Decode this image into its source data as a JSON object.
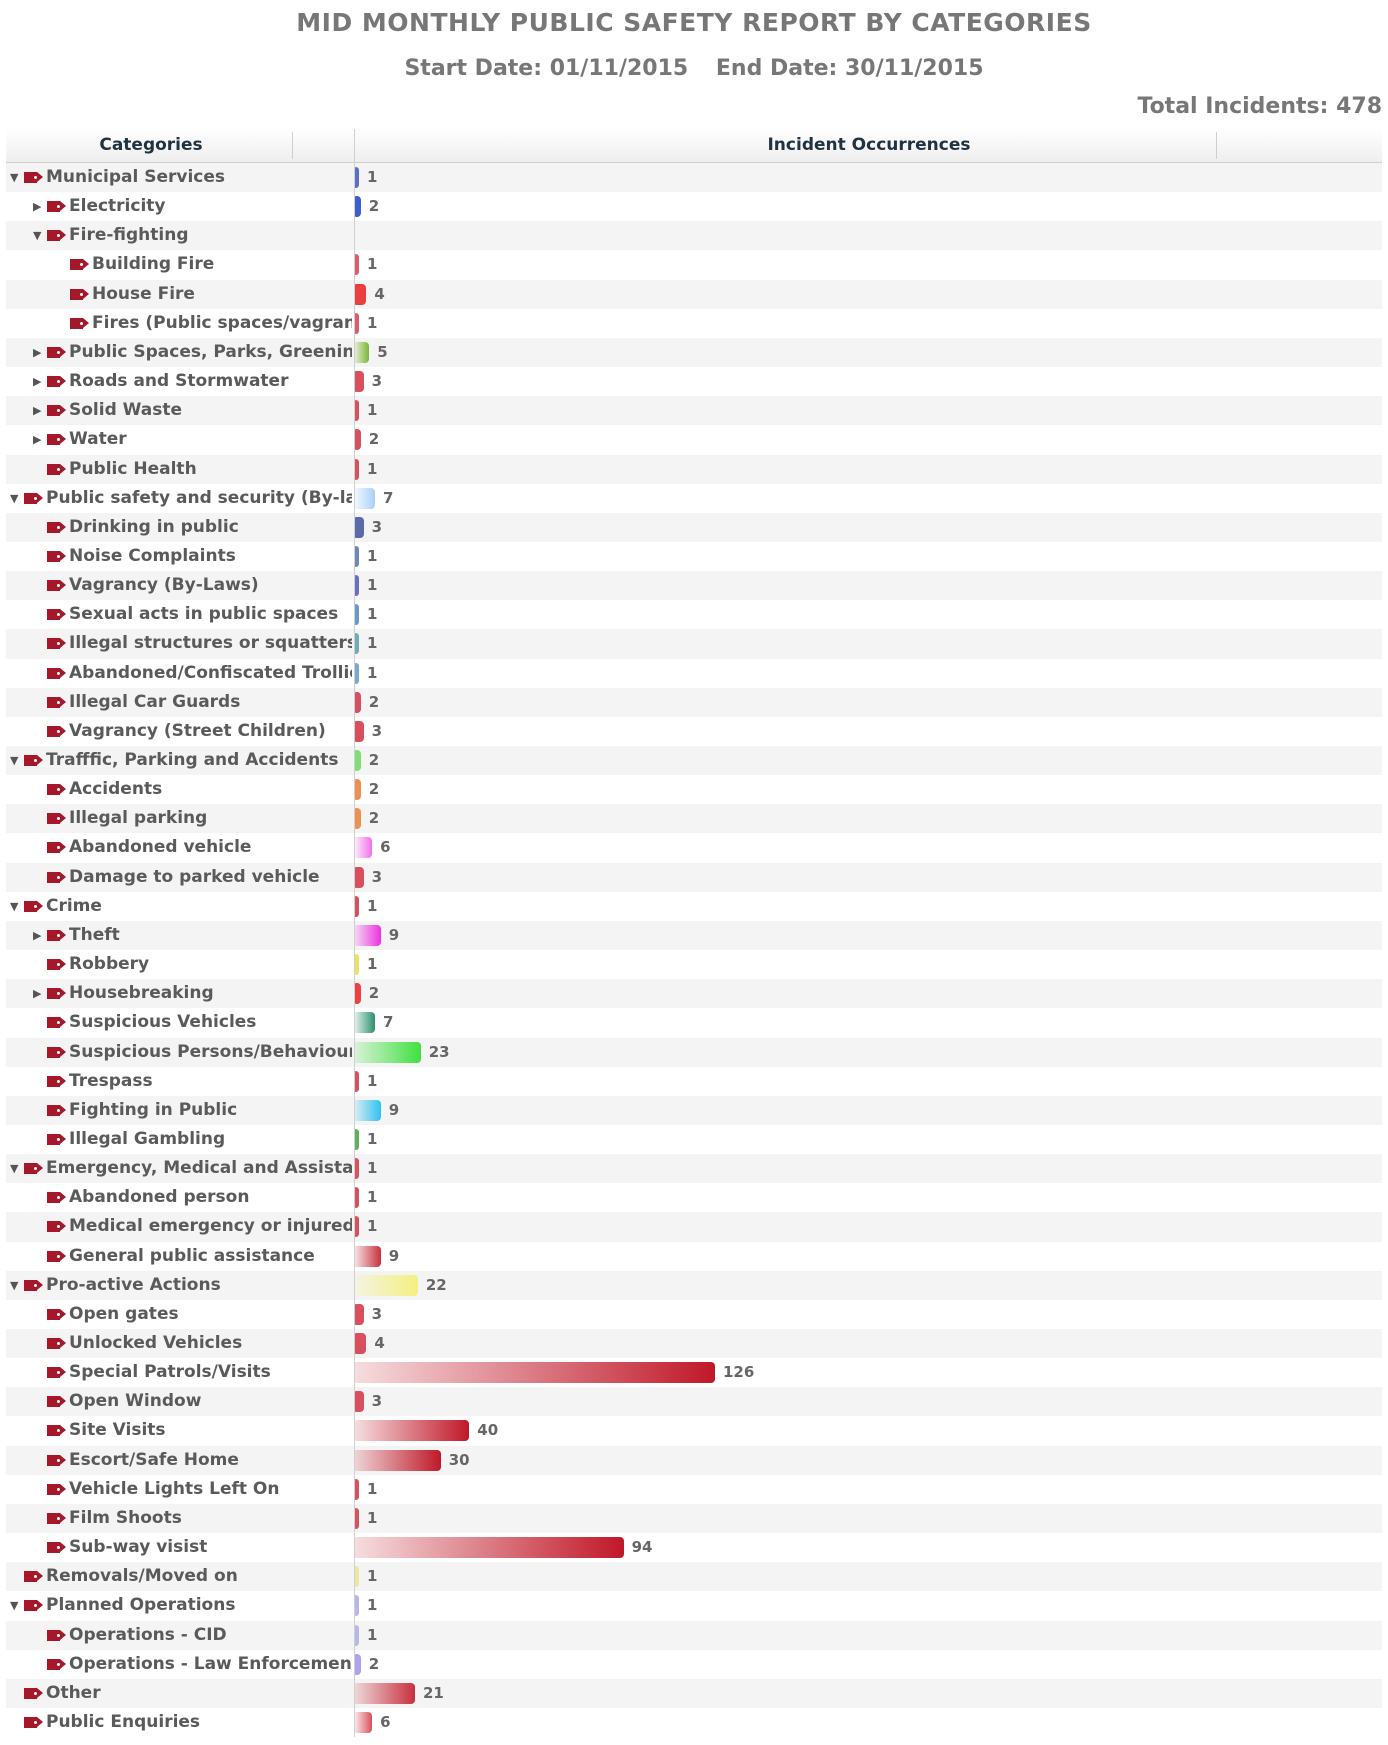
{
  "title": "MID MONTHLY PUBLIC SAFETY REPORT BY CATEGORIES",
  "start_date": "Start Date: 01/11/2015",
  "end_date": "End Date: 30/11/2015",
  "total": "Total Incidents: 478",
  "columns": {
    "categories": "Categories",
    "occurrences": "Incident Occurrences"
  },
  "chart_data": {
    "type": "bar",
    "orientation": "horizontal",
    "title": "MID MONTHLY PUBLIC SAFETY REPORT BY CATEGORIES",
    "xlim": [
      0,
      126
    ],
    "rows": [
      {
        "label": "Municipal Services",
        "value": 1,
        "level": 0,
        "toggle": "expanded",
        "color": "#5b6fc8"
      },
      {
        "label": "Electricity",
        "value": 2,
        "level": 1,
        "toggle": "collapsed",
        "color": "#3b5fd0"
      },
      {
        "label": "Fire-fighting",
        "value": null,
        "level": 1,
        "toggle": "expanded",
        "color": null
      },
      {
        "label": "Building Fire",
        "value": 1,
        "level": 2,
        "toggle": "none",
        "color": "#e05a6a"
      },
      {
        "label": "House Fire",
        "value": 4,
        "level": 2,
        "toggle": "none",
        "color": "#ee3f3f"
      },
      {
        "label": "Fires (Public spaces/vagrants)",
        "value": 1,
        "level": 2,
        "toggle": "none",
        "color": "#e05a6a"
      },
      {
        "label": "Public Spaces, Parks, Greening P",
        "value": 5,
        "level": 1,
        "toggle": "collapsed",
        "color": "#7ab830"
      },
      {
        "label": "Roads and Stormwater",
        "value": 3,
        "level": 1,
        "toggle": "collapsed",
        "color": "#d8505e"
      },
      {
        "label": "Solid Waste",
        "value": 1,
        "level": 1,
        "toggle": "collapsed",
        "color": "#d8505e"
      },
      {
        "label": "Water",
        "value": 2,
        "level": 1,
        "toggle": "collapsed",
        "color": "#d8505e"
      },
      {
        "label": "Public Health",
        "value": 1,
        "level": 1,
        "toggle": "none",
        "color": "#d8505e"
      },
      {
        "label": "Public safety and security (By-laws)",
        "value": 7,
        "level": 0,
        "toggle": "expanded",
        "color": "#a8d0f8"
      },
      {
        "label": "Drinking in public",
        "value": 3,
        "level": 1,
        "toggle": "none",
        "color": "#5a6aa8"
      },
      {
        "label": "Noise Complaints",
        "value": 1,
        "level": 1,
        "toggle": "none",
        "color": "#6a8ab8"
      },
      {
        "label": "Vagrancy (By-Laws)",
        "value": 1,
        "level": 1,
        "toggle": "none",
        "color": "#6a70c0"
      },
      {
        "label": "Sexual acts in public spaces",
        "value": 1,
        "level": 1,
        "toggle": "none",
        "color": "#6a9ac8"
      },
      {
        "label": "Illegal structures or squatters",
        "value": 1,
        "level": 1,
        "toggle": "none",
        "color": "#6ab0b0"
      },
      {
        "label": "Abandoned/Confiscated Trollies",
        "value": 1,
        "level": 1,
        "toggle": "none",
        "color": "#7aa8d0"
      },
      {
        "label": "Illegal Car Guards",
        "value": 2,
        "level": 1,
        "toggle": "none",
        "color": "#d8505e"
      },
      {
        "label": "Vagrancy (Street Children)",
        "value": 3,
        "level": 1,
        "toggle": "none",
        "color": "#d8505e"
      },
      {
        "label": "Trafffic, Parking and Accidents",
        "value": 2,
        "level": 0,
        "toggle": "expanded",
        "color": "#7ee070"
      },
      {
        "label": "Accidents",
        "value": 2,
        "level": 1,
        "toggle": "none",
        "color": "#f09050"
      },
      {
        "label": "Illegal parking",
        "value": 2,
        "level": 1,
        "toggle": "none",
        "color": "#f09050"
      },
      {
        "label": "Abandoned vehicle",
        "value": 6,
        "level": 1,
        "toggle": "none",
        "color": "#f070e8"
      },
      {
        "label": "Damage to parked vehicle",
        "value": 3,
        "level": 1,
        "toggle": "none",
        "color": "#d8505e"
      },
      {
        "label": "Crime",
        "value": 1,
        "level": 0,
        "toggle": "expanded",
        "color": "#d8505e"
      },
      {
        "label": "Theft",
        "value": 9,
        "level": 1,
        "toggle": "collapsed",
        "color": "#ee30e0"
      },
      {
        "label": "Robbery",
        "value": 1,
        "level": 1,
        "toggle": "none",
        "color": "#f0e060"
      },
      {
        "label": "Housebreaking",
        "value": 2,
        "level": 1,
        "toggle": "collapsed",
        "color": "#ee4040"
      },
      {
        "label": "Suspicious Vehicles",
        "value": 7,
        "level": 1,
        "toggle": "none",
        "color": "#2a9070"
      },
      {
        "label": "Suspicious Persons/Behaviour",
        "value": 23,
        "level": 1,
        "toggle": "none",
        "color": "#40e040"
      },
      {
        "label": "Trespass",
        "value": 1,
        "level": 1,
        "toggle": "none",
        "color": "#d8505e"
      },
      {
        "label": "Fighting in Public",
        "value": 9,
        "level": 1,
        "toggle": "none",
        "color": "#30c0f0"
      },
      {
        "label": "Illegal Gambling",
        "value": 1,
        "level": 1,
        "toggle": "none",
        "color": "#60b060"
      },
      {
        "label": "Emergency, Medical and Assistance",
        "value": 1,
        "level": 0,
        "toggle": "expanded",
        "color": "#d8505e"
      },
      {
        "label": "Abandoned person",
        "value": 1,
        "level": 1,
        "toggle": "none",
        "color": "#d8505e"
      },
      {
        "label": "Medical emergency or injured/si",
        "value": 1,
        "level": 1,
        "toggle": "none",
        "color": "#d8505e"
      },
      {
        "label": "General public assistance",
        "value": 9,
        "level": 1,
        "toggle": "none",
        "color": "#c8303e"
      },
      {
        "label": "Pro-active Actions",
        "value": 22,
        "level": 0,
        "toggle": "expanded",
        "color": "#f4f080"
      },
      {
        "label": "Open gates",
        "value": 3,
        "level": 1,
        "toggle": "none",
        "color": "#d8505e"
      },
      {
        "label": "Unlocked Vehicles",
        "value": 4,
        "level": 1,
        "toggle": "none",
        "color": "#d8505e"
      },
      {
        "label": "Special Patrols/Visits",
        "value": 126,
        "level": 1,
        "toggle": "none",
        "color": "#c01828"
      },
      {
        "label": "Open Window",
        "value": 3,
        "level": 1,
        "toggle": "none",
        "color": "#d8505e"
      },
      {
        "label": "Site Visits",
        "value": 40,
        "level": 1,
        "toggle": "none",
        "color": "#c01828"
      },
      {
        "label": "Escort/Safe Home",
        "value": 30,
        "level": 1,
        "toggle": "none",
        "color": "#c01828"
      },
      {
        "label": "Vehicle Lights Left On",
        "value": 1,
        "level": 1,
        "toggle": "none",
        "color": "#d8505e"
      },
      {
        "label": "Film Shoots",
        "value": 1,
        "level": 1,
        "toggle": "none",
        "color": "#d8505e"
      },
      {
        "label": "Sub-way visist",
        "value": 94,
        "level": 1,
        "toggle": "none",
        "color": "#c01828"
      },
      {
        "label": "Removals/Moved on",
        "value": 1,
        "level": 0,
        "toggle": "none",
        "color": "#e8e8a0"
      },
      {
        "label": "Planned Operations",
        "value": 1,
        "level": 0,
        "toggle": "expanded",
        "color": "#b8b8e8"
      },
      {
        "label": "Operations - CID",
        "value": 1,
        "level": 1,
        "toggle": "none",
        "color": "#b8b8e8"
      },
      {
        "label": "Operations - Law Enforcement",
        "value": 2,
        "level": 1,
        "toggle": "none",
        "color": "#b0a0f0"
      },
      {
        "label": "Other",
        "value": 21,
        "level": 0,
        "toggle": "none",
        "color": "#c8303e"
      },
      {
        "label": "Public Enquiries",
        "value": 6,
        "level": 0,
        "toggle": "none",
        "color": "#d8505e"
      }
    ]
  }
}
